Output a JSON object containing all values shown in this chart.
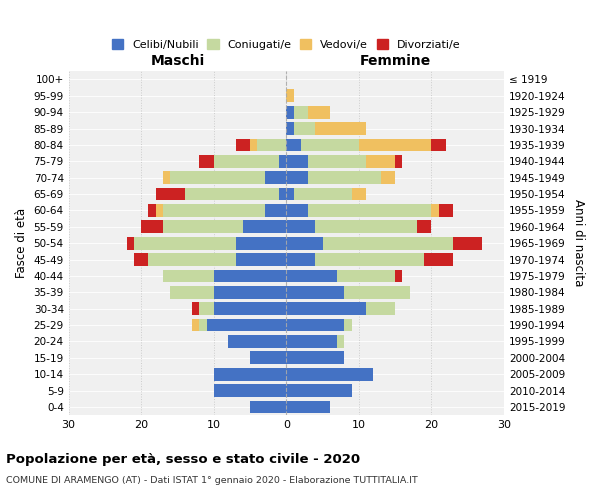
{
  "age_groups": [
    "0-4",
    "5-9",
    "10-14",
    "15-19",
    "20-24",
    "25-29",
    "30-34",
    "35-39",
    "40-44",
    "45-49",
    "50-54",
    "55-59",
    "60-64",
    "65-69",
    "70-74",
    "75-79",
    "80-84",
    "85-89",
    "90-94",
    "95-99",
    "100+"
  ],
  "birth_years": [
    "2015-2019",
    "2010-2014",
    "2005-2009",
    "2000-2004",
    "1995-1999",
    "1990-1994",
    "1985-1989",
    "1980-1984",
    "1975-1979",
    "1970-1974",
    "1965-1969",
    "1960-1964",
    "1955-1959",
    "1950-1954",
    "1945-1949",
    "1940-1944",
    "1935-1939",
    "1930-1934",
    "1925-1929",
    "1920-1924",
    "≤ 1919"
  ],
  "colors": {
    "celibi": "#4472C4",
    "coniugati": "#c5d9a0",
    "vedovi": "#f0c060",
    "divorziati": "#cc2222"
  },
  "male": {
    "celibi": [
      5,
      10,
      10,
      5,
      8,
      11,
      10,
      10,
      10,
      7,
      7,
      6,
      3,
      1,
      3,
      1,
      0,
      0,
      0,
      0,
      0
    ],
    "coniugati": [
      0,
      0,
      0,
      0,
      0,
      1,
      2,
      6,
      7,
      12,
      14,
      11,
      14,
      13,
      13,
      9,
      4,
      0,
      0,
      0,
      0
    ],
    "vedovi": [
      0,
      0,
      0,
      0,
      0,
      1,
      0,
      0,
      0,
      0,
      0,
      0,
      1,
      0,
      1,
      0,
      1,
      0,
      0,
      0,
      0
    ],
    "divorziati": [
      0,
      0,
      0,
      0,
      0,
      0,
      1,
      0,
      0,
      2,
      1,
      3,
      1,
      4,
      0,
      2,
      2,
      0,
      0,
      0,
      0
    ]
  },
  "female": {
    "celibi": [
      6,
      9,
      12,
      8,
      7,
      8,
      11,
      8,
      7,
      4,
      5,
      4,
      3,
      1,
      3,
      3,
      2,
      1,
      1,
      0,
      0
    ],
    "coniugati": [
      0,
      0,
      0,
      0,
      1,
      1,
      4,
      9,
      8,
      15,
      18,
      14,
      17,
      8,
      10,
      8,
      8,
      3,
      2,
      0,
      0
    ],
    "vedovi": [
      0,
      0,
      0,
      0,
      0,
      0,
      0,
      0,
      0,
      0,
      0,
      0,
      1,
      2,
      2,
      4,
      10,
      7,
      3,
      1,
      0
    ],
    "divorziati": [
      0,
      0,
      0,
      0,
      0,
      0,
      0,
      0,
      1,
      4,
      4,
      2,
      2,
      0,
      0,
      1,
      2,
      0,
      0,
      0,
      0
    ]
  },
  "xlim": 30,
  "title": "Popolazione per età, sesso e stato civile - 2020",
  "subtitle": "COMUNE DI ARAMENGO (AT) - Dati ISTAT 1° gennaio 2020 - Elaborazione TUTTITALIA.IT",
  "ylabel_left": "Fasce di età",
  "ylabel_right": "Anni di nascita",
  "xlabel_left": "Maschi",
  "xlabel_right": "Femmine",
  "legend_labels": [
    "Celibi/Nubili",
    "Coniugati/e",
    "Vedovi/e",
    "Divorziati/e"
  ],
  "background": "#f0f0f0"
}
